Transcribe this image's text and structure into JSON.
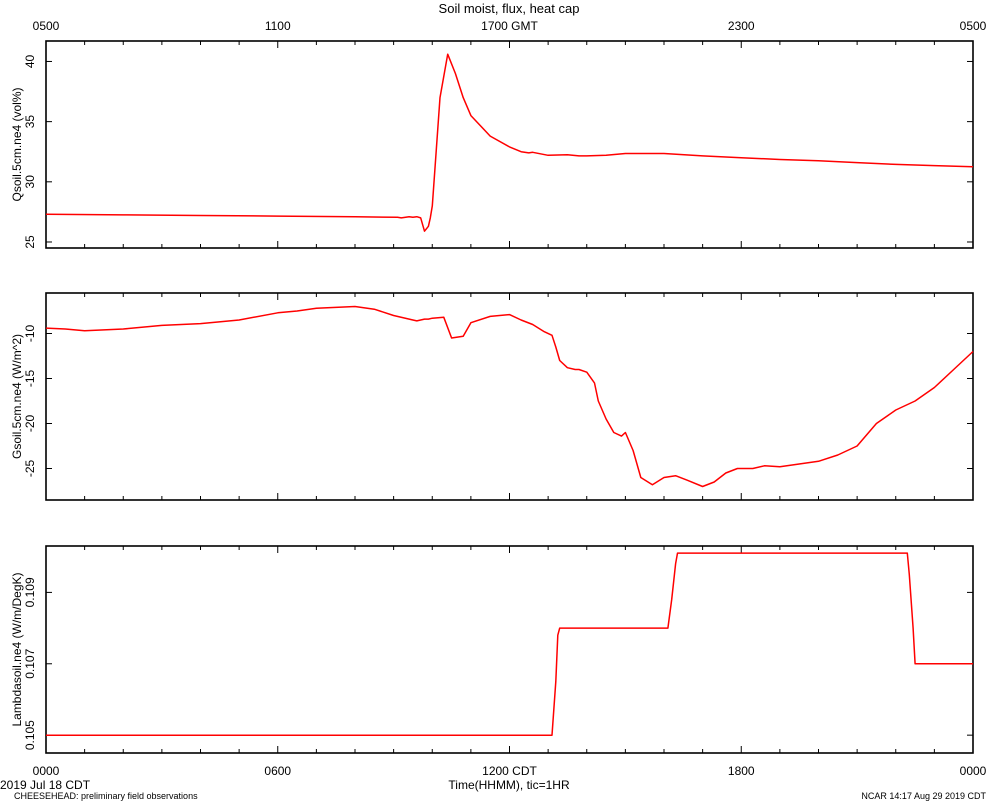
{
  "title": "Soil moist, flux, heat cap",
  "top_axis": {
    "labels": [
      "0500",
      "1100",
      "1700 GMT",
      "2300",
      "0500"
    ],
    "positions_hours": [
      0,
      6,
      12,
      18,
      24
    ]
  },
  "bottom_axis": {
    "labels": [
      "0000",
      "0600",
      "1200 CDT",
      "1800",
      "0000"
    ],
    "positions_hours": [
      0,
      6,
      12,
      18,
      24
    ],
    "xlabel": "Time(HHMM), tic=1HR"
  },
  "date_label": "2019 Jul 18 CDT",
  "footer_left": "CHEESEHEAD: preliminary field observations",
  "footer_right": "NCAR 14:17 Aug 29 2019 CDT",
  "colors": {
    "line": "#ff0000",
    "axis": "#000000",
    "background": "#ffffff"
  },
  "chart_data": [
    {
      "type": "line",
      "ylabel": "Qsoil.5cm.ne4 (vol%)",
      "ylim": [
        24.5,
        41.7
      ],
      "yticks": [
        25,
        30,
        35,
        40
      ],
      "xlim": [
        0,
        24
      ],
      "x_unit": "hours after 0000 CDT",
      "series": [
        {
          "x": [
            0,
            2,
            4,
            6,
            8,
            9.1,
            9.2,
            9.4,
            9.5,
            9.6,
            9.7,
            9.8,
            9.9,
            9.95,
            10.0,
            10.2,
            10.4,
            10.6,
            10.8,
            11.0,
            11.5,
            12.0,
            12.3,
            12.5,
            12.6,
            13.0,
            13.5,
            13.8,
            14.0,
            14.5,
            15.0,
            15.5,
            16.0,
            17.0,
            18.0,
            19.0,
            20.0,
            21.0,
            22.0,
            23.0,
            24.0
          ],
          "y": [
            27.3,
            27.25,
            27.2,
            27.15,
            27.1,
            27.05,
            27.0,
            27.1,
            27.05,
            27.1,
            27.0,
            25.9,
            26.3,
            27.0,
            28.0,
            37.0,
            40.6,
            39.0,
            37.0,
            35.5,
            33.8,
            32.9,
            32.5,
            32.4,
            32.45,
            32.2,
            32.25,
            32.15,
            32.15,
            32.2,
            32.35,
            32.35,
            32.35,
            32.15,
            32.0,
            31.85,
            31.75,
            31.6,
            31.45,
            31.35,
            31.25
          ]
        }
      ]
    },
    {
      "type": "line",
      "ylabel": "Gsoil.5cm.ne4 (W/m^2)",
      "ylim": [
        -28.5,
        -5.5
      ],
      "yticks": [
        -10,
        -15,
        -20,
        -25
      ],
      "xlim": [
        0,
        24
      ],
      "x_unit": "hours after 0000 CDT",
      "series": [
        {
          "x": [
            0,
            0.5,
            1,
            2,
            3,
            4,
            5,
            6,
            6.5,
            7,
            7.5,
            8,
            8.5,
            9,
            9.5,
            9.6,
            9.8,
            9.9,
            10.0,
            10.3,
            10.5,
            10.8,
            11.0,
            11.5,
            12.0,
            12.3,
            12.6,
            12.9,
            13.1,
            13.2,
            13.3,
            13.5,
            13.7,
            13.8,
            14.0,
            14.2,
            14.3,
            14.5,
            14.7,
            14.9,
            15.0,
            15.2,
            15.4,
            15.7,
            16.0,
            16.3,
            16.6,
            17.0,
            17.3,
            17.6,
            17.9,
            18.0,
            18.3,
            18.6,
            19.0,
            19.5,
            20.0,
            20.5,
            21.0,
            21.5,
            22.0,
            22.5,
            23.0,
            23.5,
            24.0
          ],
          "y": [
            -9.4,
            -9.5,
            -9.7,
            -9.5,
            -9.1,
            -8.9,
            -8.5,
            -7.7,
            -7.5,
            -7.2,
            -7.1,
            -7.0,
            -7.3,
            -8.0,
            -8.5,
            -8.6,
            -8.4,
            -8.4,
            -8.3,
            -8.2,
            -10.5,
            -10.3,
            -8.8,
            -8.1,
            -7.9,
            -8.5,
            -9.0,
            -9.8,
            -10.2,
            -11.5,
            -13.0,
            -13.8,
            -14.0,
            -14.0,
            -14.3,
            -15.5,
            -17.5,
            -19.5,
            -21.0,
            -21.4,
            -21.0,
            -23.0,
            -26.0,
            -26.8,
            -26.0,
            -25.8,
            -26.3,
            -27.0,
            -26.5,
            -25.5,
            -25.0,
            -25.0,
            -25.0,
            -24.7,
            -24.8,
            -24.5,
            -24.2,
            -23.5,
            -22.5,
            -20.0,
            -18.5,
            -17.5,
            -16.0,
            -14.0,
            -12.0
          ]
        }
      ]
    },
    {
      "type": "line",
      "ylabel": "Lambdasoil.ne4 (W/m/DegK)",
      "ylim": [
        0.1045,
        0.1103
      ],
      "yticks": [
        0.105,
        0.107,
        0.109
      ],
      "xlim": [
        0,
        24
      ],
      "x_unit": "hours after 0000 CDT",
      "series": [
        {
          "x": [
            0,
            13.1,
            13.2,
            13.25,
            13.3,
            16.1,
            16.2,
            16.3,
            16.35,
            16.4,
            22.3,
            22.35,
            22.45,
            22.5,
            24.0
          ],
          "y": [
            0.105,
            0.105,
            0.1065,
            0.1078,
            0.108,
            0.108,
            0.1088,
            0.1098,
            0.1101,
            0.1101,
            0.1101,
            0.1095,
            0.108,
            0.107,
            0.107
          ]
        }
      ]
    }
  ]
}
